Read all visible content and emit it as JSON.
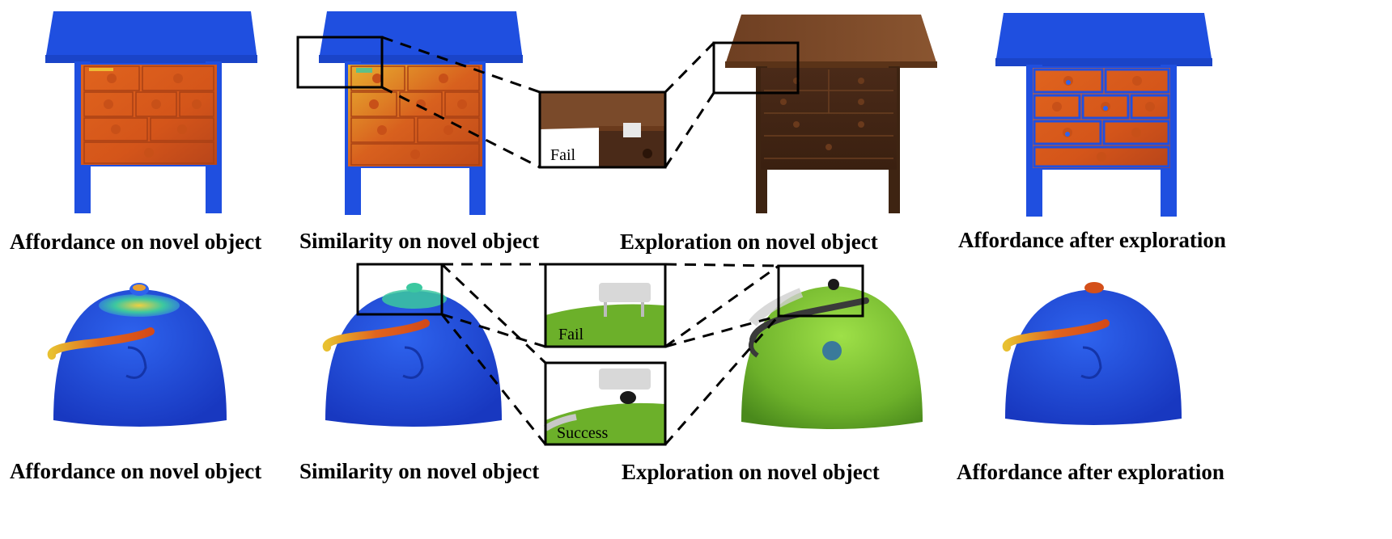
{
  "captions": {
    "row1": [
      "Affordance on novel object",
      "Similarity on novel object",
      "Exploration on novel object",
      "Affordance after exploration"
    ],
    "row2": [
      "Affordance on novel object",
      "Similarity on novel object",
      "Exploration on novel object",
      "Affordance after exploration"
    ]
  },
  "insets": {
    "cabinet_result": "Fail",
    "pot_result_top": "Fail",
    "pot_result_bottom": "Success"
  },
  "colors": {
    "affordance_blue": "#1f4fe0",
    "affordance_orange": "#e0641e",
    "affordance_yellow": "#f0d23c",
    "wood_dark": "#4a2a1a",
    "wood_top": "#7a4a2a",
    "pot_green": "#7cc236",
    "frame": "#000000"
  }
}
